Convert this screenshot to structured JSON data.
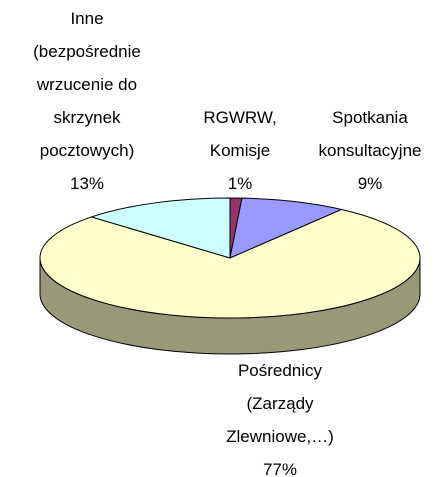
{
  "chart_data": {
    "type": "pie",
    "categories": [
      "RGWRW,\nKomisje",
      "Spotkania\nkonsultacyjne",
      "Pośrednicy\n(Zarządy\nZlewniowe,…)",
      "Inne\n(bezpośrednie\nwrzucenie do\nskrzynek\npocztowych)"
    ],
    "values": [
      1,
      9,
      77,
      13
    ],
    "value_labels": [
      "1%",
      "9%",
      "77%",
      "13%"
    ],
    "colors": [
      "#993366",
      "#9999ff",
      "#ffffcc",
      "#ccffff"
    ],
    "side_colors": [
      "#5c1f3d",
      "#5c5c99",
      "#99997a",
      "#7a9999"
    ]
  }
}
